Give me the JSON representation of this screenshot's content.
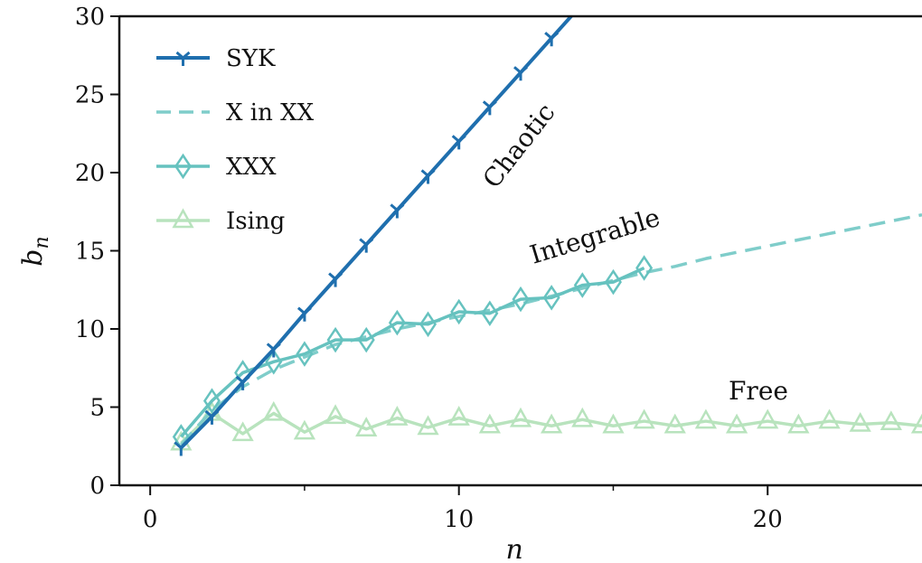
{
  "chart_data": {
    "type": "line",
    "xlabel": "n",
    "ylabel": "b",
    "ylabel_sub": "n",
    "xlim": [
      -1,
      25
    ],
    "ylim": [
      0,
      30
    ],
    "xticks": [
      0,
      10,
      20
    ],
    "yticks": [
      0,
      5,
      10,
      15,
      20,
      25,
      30
    ],
    "grid": false,
    "legend_position": "top-left",
    "series": [
      {
        "name": "SYK",
        "style": "solid",
        "marker": "tri_down",
        "color": "#1f6fae",
        "x": [
          1,
          2,
          3,
          4,
          5,
          6,
          7,
          8,
          9,
          10,
          11,
          12,
          13,
          14
        ],
        "y": [
          2.4,
          4.4,
          6.6,
          8.7,
          11.0,
          13.2,
          15.4,
          17.6,
          19.8,
          22.0,
          24.2,
          26.4,
          28.6,
          30.8
        ]
      },
      {
        "name": "X in XX",
        "style": "dashed",
        "marker": "none",
        "color": "#7fcdca",
        "x": [
          1,
          2,
          3,
          4,
          5,
          6,
          7,
          8,
          9,
          10,
          11,
          12,
          13,
          14,
          15,
          16,
          17,
          18,
          19,
          20,
          21,
          22,
          23,
          24,
          25
        ],
        "y": [
          2.6,
          4.8,
          6.3,
          7.4,
          8.2,
          9.0,
          9.5,
          10.0,
          10.4,
          10.8,
          11.2,
          11.6,
          12.1,
          12.6,
          13.1,
          13.6,
          14.0,
          14.5,
          14.9,
          15.3,
          15.7,
          16.1,
          16.5,
          16.9,
          17.3
        ]
      },
      {
        "name": "XXX",
        "style": "solid",
        "marker": "thin_diamond",
        "color": "#66c2bf",
        "x": [
          1,
          2,
          3,
          4,
          5,
          6,
          7,
          8,
          9,
          10,
          11,
          12,
          13,
          14,
          15,
          16
        ],
        "y": [
          3.1,
          5.4,
          7.2,
          7.9,
          8.4,
          9.3,
          9.3,
          10.4,
          10.3,
          11.1,
          11.0,
          11.9,
          12.0,
          12.8,
          13.0,
          13.9
        ]
      },
      {
        "name": "Ising",
        "style": "solid",
        "marker": "triangle_up",
        "color": "#b8e3bd",
        "x": [
          1,
          2,
          3,
          4,
          5,
          6,
          7,
          8,
          9,
          10,
          11,
          12,
          13,
          14,
          15,
          16,
          17,
          18,
          19,
          20,
          21,
          22,
          23,
          24,
          25
        ],
        "y": [
          2.7,
          4.6,
          3.3,
          4.6,
          3.4,
          4.4,
          3.6,
          4.3,
          3.7,
          4.3,
          3.8,
          4.2,
          3.8,
          4.2,
          3.8,
          4.1,
          3.8,
          4.1,
          3.8,
          4.1,
          3.8,
          4.1,
          3.9,
          4.0,
          3.8
        ]
      }
    ],
    "annotations": [
      {
        "text": "Chaotic"
      },
      {
        "text": "Integrable"
      },
      {
        "text": "Free"
      }
    ]
  }
}
